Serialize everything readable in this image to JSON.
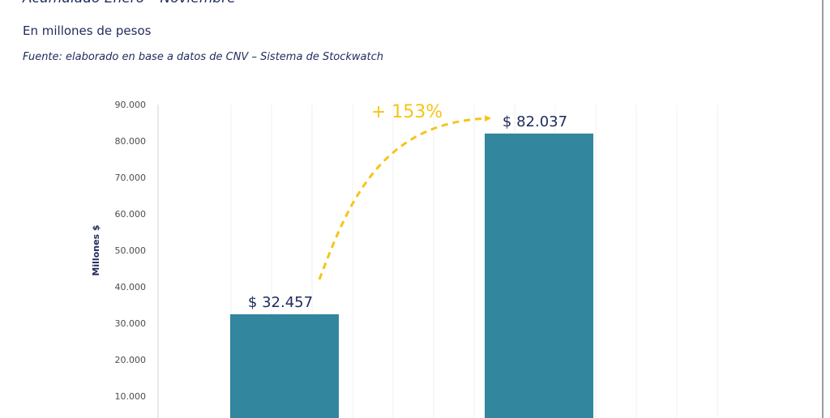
{
  "header": {
    "headline": "Acumulado Enero – Noviembre",
    "subtitle": "En millones de pesos",
    "source": "Fuente: elaborado en base a datos de CNV – Sistema de Stockwatch"
  },
  "chart_data": {
    "type": "bar",
    "categories": [
      "",
      ""
    ],
    "values": [
      32457,
      82037
    ],
    "value_labels": [
      "$ 32.457",
      "$ 82.037"
    ],
    "ylabel": "Millones $",
    "ylim": [
      0,
      90000
    ],
    "yticks": [
      10000,
      20000,
      30000,
      40000,
      50000,
      60000,
      70000,
      80000,
      90000
    ],
    "ytick_labels": [
      "10.000",
      "20.000",
      "30.000",
      "40.000",
      "50.000",
      "60.000",
      "70.000",
      "80.000",
      "90.000"
    ],
    "annotation": "+ 153%",
    "bar_color": "#32869e",
    "annotation_color": "#f5c518",
    "grid": true
  }
}
